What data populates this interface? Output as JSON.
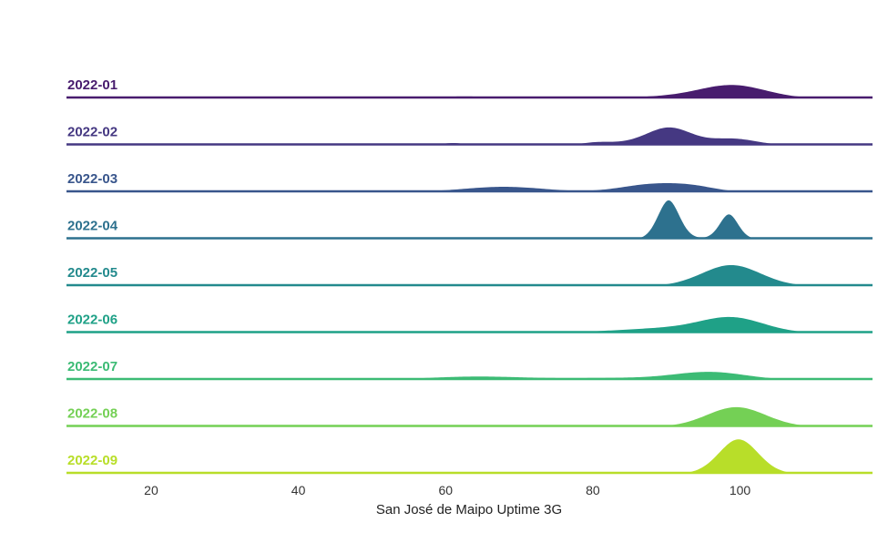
{
  "chart_data": {
    "type": "ridgeline",
    "title": "",
    "xlabel": "San José de Maipo Uptime 3G",
    "ylabel": "",
    "xlim": [
      8.5,
      118
    ],
    "xticks": [
      20,
      40,
      60,
      80,
      100
    ],
    "grid": false,
    "series": [
      {
        "name": "2022-01",
        "color": "#481c6e",
        "components": [
          {
            "mu": 62.5,
            "sigma": 3.5,
            "h": 0.12
          },
          {
            "mu": 90,
            "sigma": 5,
            "h": 0.1
          },
          {
            "mu": 99,
            "sigma": 4.5,
            "h": 0.8
          }
        ]
      },
      {
        "name": "2022-02",
        "color": "#453882",
        "components": [
          {
            "mu": 61,
            "sigma": 1.5,
            "h": 0.14
          },
          {
            "mu": 80.5,
            "sigma": 2,
            "h": 0.14
          },
          {
            "mu": 90.5,
            "sigma": 3,
            "h": 1.0
          },
          {
            "mu": 99,
            "sigma": 3.2,
            "h": 0.4
          },
          {
            "mu": 86,
            "sigma": 4,
            "h": 0.15
          }
        ]
      },
      {
        "name": "2022-03",
        "color": "#39568c",
        "components": [
          {
            "mu": 40,
            "sigma": 10,
            "h": 0.09
          },
          {
            "mu": 68,
            "sigma": 5.5,
            "h": 0.33
          },
          {
            "mu": 88.5,
            "sigma": 4.5,
            "h": 0.5
          },
          {
            "mu": 94,
            "sigma": 3,
            "h": 0.2
          }
        ]
      },
      {
        "name": "2022-04",
        "color": "#2d718e",
        "components": [
          {
            "mu": 90.3,
            "sigma": 1.5,
            "h": 2.35
          },
          {
            "mu": 98.5,
            "sigma": 1.3,
            "h": 1.5
          },
          {
            "mu": 94,
            "sigma": 3,
            "h": 0.05
          }
        ]
      },
      {
        "name": "2022-05",
        "color": "#238a8d",
        "components": [
          {
            "mu": 98.8,
            "sigma": 4,
            "h": 1.28
          }
        ]
      },
      {
        "name": "2022-06",
        "color": "#1fa187",
        "components": [
          {
            "mu": 90,
            "sigma": 7,
            "h": 0.28
          },
          {
            "mu": 99,
            "sigma": 4.3,
            "h": 0.85
          },
          {
            "mu": 52,
            "sigma": 3,
            "h": 0.02
          }
        ]
      },
      {
        "name": "2022-07",
        "color": "#3cbb75",
        "components": [
          {
            "mu": 64,
            "sigma": 6.5,
            "h": 0.2
          },
          {
            "mu": 83,
            "sigma": 8,
            "h": 0.12
          },
          {
            "mu": 96,
            "sigma": 4.8,
            "h": 0.46
          }
        ]
      },
      {
        "name": "2022-08",
        "color": "#74d055",
        "components": [
          {
            "mu": 99.5,
            "sigma": 4,
            "h": 1.2
          },
          {
            "mu": 65,
            "sigma": 8,
            "h": 0.02
          }
        ]
      },
      {
        "name": "2022-09",
        "color": "#b8de29",
        "components": [
          {
            "mu": 99.8,
            "sigma": 2.7,
            "h": 2.1
          }
        ]
      }
    ]
  }
}
